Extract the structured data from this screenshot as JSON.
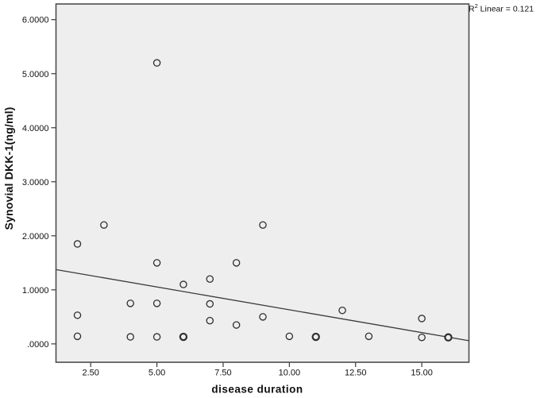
{
  "figure": {
    "background": "#ffffff",
    "plot_background": "#eeeeee",
    "frame_color": "#4d4d4d",
    "tick_color": "#3a3a3a",
    "text_color": "#111111",
    "marker_color": "#2f2f2f",
    "trendline_color": "#3a3a3a",
    "annotation": {
      "prefix": "R",
      "superscript": "2",
      "rest": " Linear = 0.121"
    }
  },
  "chart_data": {
    "type": "scatter",
    "title": "",
    "xlabel": "disease duration",
    "ylabel": "Synovial DKK-1(ng/ml)",
    "xlim": [
      1.19,
      16.78
    ],
    "ylim": [
      -0.34,
      6.29
    ],
    "grid": false,
    "legend": false,
    "x_ticks": [
      {
        "value": 2.5,
        "label": "2.50"
      },
      {
        "value": 5,
        "label": "5.00"
      },
      {
        "value": 7.5,
        "label": "7.50"
      },
      {
        "value": 10,
        "label": "10.00"
      },
      {
        "value": 12.5,
        "label": "12.50"
      },
      {
        "value": 15,
        "label": "15.00"
      }
    ],
    "y_ticks": [
      {
        "value": 0,
        "label": ".0000"
      },
      {
        "value": 1,
        "label": "1.0000"
      },
      {
        "value": 2,
        "label": "2.0000"
      },
      {
        "value": 3,
        "label": "3.0000"
      },
      {
        "value": 4,
        "label": "4.0000"
      },
      {
        "value": 5,
        "label": "5.0000"
      },
      {
        "value": 6,
        "label": "6.0000"
      }
    ],
    "points": [
      {
        "x": 2,
        "y": 1.85
      },
      {
        "x": 2,
        "y": 0.53
      },
      {
        "x": 2,
        "y": 0.14
      },
      {
        "x": 3,
        "y": 2.2
      },
      {
        "x": 4,
        "y": 0.75
      },
      {
        "x": 4,
        "y": 0.13
      },
      {
        "x": 5,
        "y": 5.2
      },
      {
        "x": 5,
        "y": 1.5
      },
      {
        "x": 5,
        "y": 0.75
      },
      {
        "x": 5,
        "y": 0.13
      },
      {
        "x": 6,
        "y": 1.1
      },
      {
        "x": 6,
        "y": 0.13,
        "overplotted": true
      },
      {
        "x": 7,
        "y": 1.2
      },
      {
        "x": 7,
        "y": 0.74
      },
      {
        "x": 7,
        "y": 0.43
      },
      {
        "x": 8,
        "y": 1.5
      },
      {
        "x": 8,
        "y": 0.35
      },
      {
        "x": 9,
        "y": 2.2
      },
      {
        "x": 9,
        "y": 0.5
      },
      {
        "x": 10,
        "y": 0.14
      },
      {
        "x": 11,
        "y": 0.13,
        "overplotted": true
      },
      {
        "x": 12,
        "y": 0.62
      },
      {
        "x": 13,
        "y": 0.14
      },
      {
        "x": 15,
        "y": 0.47
      },
      {
        "x": 15,
        "y": 0.12
      },
      {
        "x": 16,
        "y": 0.12,
        "overplotted": true
      }
    ],
    "trendline": {
      "slope": -0.0844,
      "intercept": 1.475,
      "r_squared": 0.121,
      "label": "R² Linear = 0.121"
    }
  }
}
